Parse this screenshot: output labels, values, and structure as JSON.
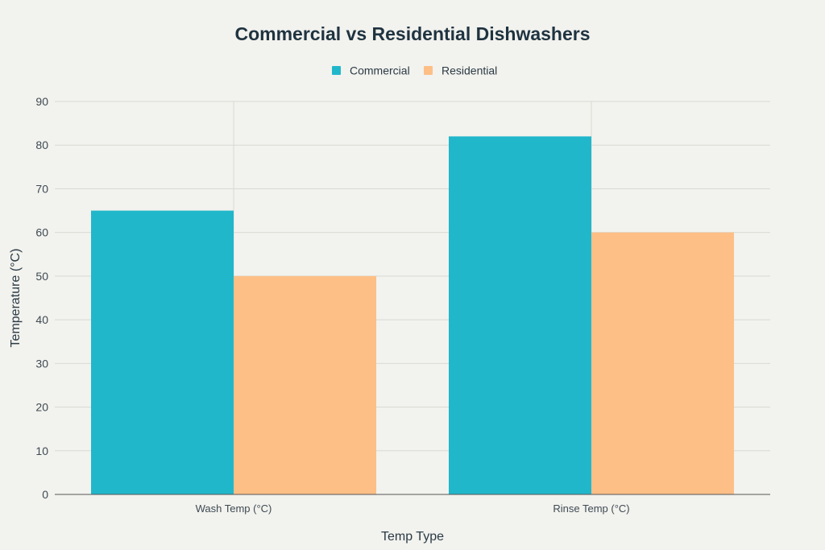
{
  "chart_data": {
    "type": "bar",
    "title": "Commercial vs Residential Dishwashers",
    "xlabel": "Temp Type",
    "ylabel": "Temperature (°C)",
    "categories": [
      "Wash Temp (°C)",
      "Rinse Temp (°C)"
    ],
    "series": [
      {
        "name": "Commercial",
        "values": [
          65,
          82
        ],
        "color": "#21b7cb"
      },
      {
        "name": "Residential",
        "values": [
          50,
          60
        ],
        "color": "#fdbf86"
      }
    ],
    "ylim": [
      0,
      90
    ],
    "yticks": [
      0,
      10,
      20,
      30,
      40,
      50,
      60,
      70,
      80,
      90
    ],
    "grid": true,
    "legend_position": "top-center"
  }
}
